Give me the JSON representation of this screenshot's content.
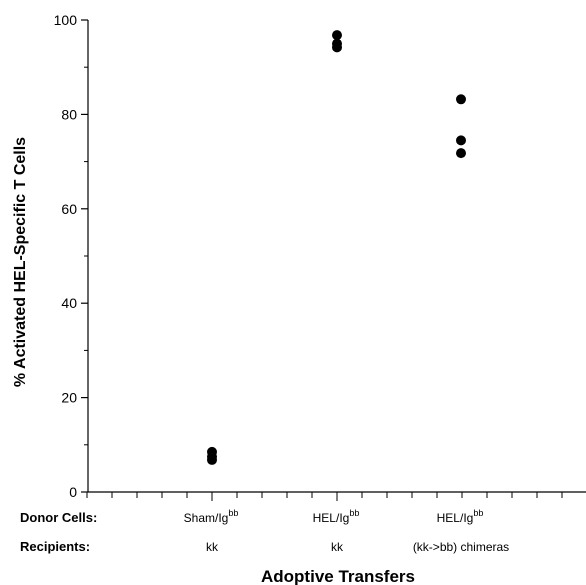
{
  "chart_data": {
    "type": "scatter",
    "title": "",
    "xlabel": "Adoptive Transfers",
    "ylabel": "% Activated  HEL-Specific  T Cells",
    "ylim": [
      0,
      100
    ],
    "yticks": [
      0,
      20,
      40,
      60,
      80,
      100
    ],
    "grid": false,
    "legend": "none",
    "marker_color": "#000000",
    "row_headers": {
      "donor": "Donor  Cells:",
      "recipient": "Recipients:"
    },
    "categories": [
      {
        "donor": "Sham/Ig",
        "donor_sup": "bb",
        "recipient": "kk"
      },
      {
        "donor": "HEL/Ig",
        "donor_sup": "bb",
        "recipient": "kk"
      },
      {
        "donor": "HEL/Ig",
        "donor_sup": "bb",
        "recipient": "(kk->bb) chimeras"
      }
    ],
    "series": [
      {
        "values": [
          [
            8.5,
            7.5,
            6.8
          ],
          [
            96.8,
            95.0,
            94.2
          ],
          [
            83.2,
            74.5,
            71.8
          ]
        ]
      }
    ]
  }
}
